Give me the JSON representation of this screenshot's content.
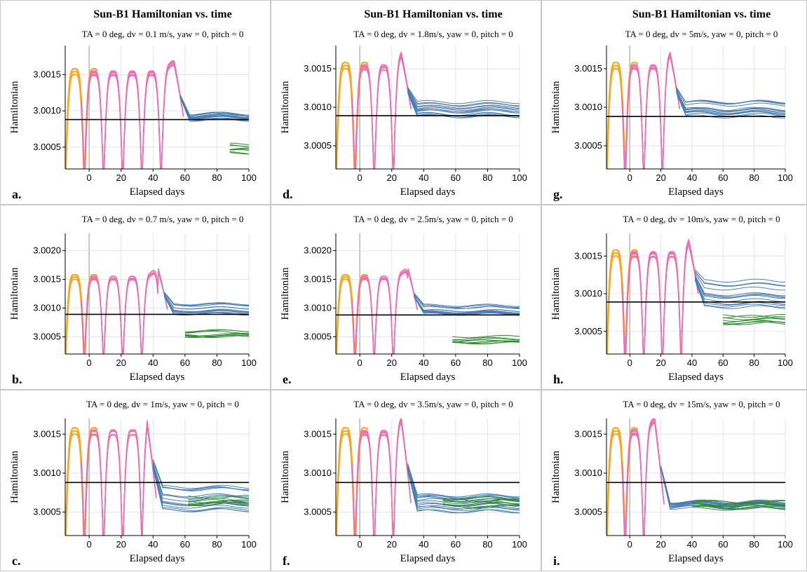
{
  "figure": {
    "panels": [
      {
        "id": "a",
        "letter": "a.",
        "title": "Sun-B1 Hamiltonian vs. time",
        "subtitle": "TA = 0 deg, dv = 0.1 m/s, yaw = 0, pitch = 0"
      },
      {
        "id": "d",
        "letter": "d.",
        "title": "Sun-B1 Hamiltonian vs. time",
        "subtitle": "TA = 0 deg, dv = 1.8m/s, yaw = 0, pitch = 0"
      },
      {
        "id": "g",
        "letter": "g.",
        "title": "Sun-B1 Hamiltonian vs. time",
        "subtitle": "TA = 0 deg, dv = 5m/s, yaw = 0, pitch = 0"
      },
      {
        "id": "b",
        "letter": "b.",
        "title": "",
        "subtitle": "TA = 0 deg, dv = 0.7 m/s, yaw = 0, pitch = 0"
      },
      {
        "id": "e",
        "letter": "e.",
        "title": "",
        "subtitle": "TA = 0 deg, dv = 2.5m/s, yaw = 0, pitch = 0"
      },
      {
        "id": "h",
        "letter": "h.",
        "title": "",
        "subtitle": "TA = 0 deg, dv = 10m/s, yaw = 0, pitch = 0"
      },
      {
        "id": "c",
        "letter": "c.",
        "title": "",
        "subtitle": "TA = 0 deg, dv = 1m/s, yaw = 0, pitch = 0"
      },
      {
        "id": "f",
        "letter": "f.",
        "title": "",
        "subtitle": "TA = 0 deg, dv = 3.5m/s, yaw = 0, pitch = 0"
      },
      {
        "id": "i",
        "letter": "i.",
        "title": "",
        "subtitle": "TA = 0 deg, dv = 15m/s, yaw = 0, pitch = 0"
      }
    ]
  },
  "colors": {
    "pre": "#f5a623",
    "transfer": "#ec6fb2",
    "orbit": "#4a7fb5",
    "late": "#2e8b2e",
    "reference": "#000000",
    "grid": "#e3e3e3",
    "zeroline": "#b0b0b0",
    "axis": "#000000"
  },
  "chart_data": [
    {
      "panel": "a",
      "type": "line",
      "title": "Sun-B1 Hamiltonian vs. time",
      "subtitle": "TA = 0 deg, dv = 0.1 m/s, yaw = 0, pitch = 0",
      "xlabel": "Elapsed days",
      "ylabel": "Hamiltonian",
      "xlim": [
        -15,
        100
      ],
      "ylim": [
        3.0002,
        3.0019
      ],
      "xticks": [
        0,
        20,
        40,
        60,
        80,
        100
      ],
      "yticks": [
        3.0005,
        3.001,
        3.0015
      ],
      "ytick_labels": [
        "3.0005",
        "3.0010",
        "3.0015"
      ],
      "reference_y": 3.00088,
      "transfer_end": 55,
      "orbit_level": 3.00092,
      "green_start": 88,
      "green_level": 3.00048,
      "spread": 5e-05
    },
    {
      "panel": "d",
      "type": "line",
      "title": "Sun-B1 Hamiltonian vs. time",
      "subtitle": "TA = 0 deg, dv = 1.8m/s, yaw = 0, pitch = 0",
      "xlabel": "Elapsed days",
      "ylabel": "Hamiltonian",
      "xlim": [
        -15,
        100
      ],
      "ylim": [
        3.0002,
        3.0018
      ],
      "xticks": [
        0,
        20,
        40,
        60,
        80,
        100
      ],
      "yticks": [
        3.0005,
        3.001,
        3.0015
      ],
      "ytick_labels": [
        "3.0005",
        "3.0010",
        "3.0015"
      ],
      "reference_y": 3.00089,
      "transfer_end": 28,
      "orbit_level": 3.00098,
      "green_start": null,
      "green_level": null,
      "spread": 0.0001
    },
    {
      "panel": "g",
      "type": "line",
      "title": "Sun-B1 Hamiltonian vs. time",
      "subtitle": "TA = 0 deg, dv = 5m/s, yaw = 0, pitch = 0",
      "xlabel": "Elapsed days",
      "ylabel": "Hamiltonian",
      "xlim": [
        -15,
        100
      ],
      "ylim": [
        3.0002,
        3.0018
      ],
      "xticks": [
        0,
        20,
        40,
        60,
        80,
        100
      ],
      "yticks": [
        3.0005,
        3.001,
        3.0015
      ],
      "ytick_labels": [
        "3.0005",
        "3.0010",
        "3.0015"
      ],
      "reference_y": 3.00088,
      "transfer_end": 28,
      "orbit_level": 3.00098,
      "green_start": null,
      "green_level": null,
      "spread": 0.0001
    },
    {
      "panel": "b",
      "type": "line",
      "title": "",
      "subtitle": "TA = 0 deg, dv = 0.7 m/s, yaw = 0, pitch = 0",
      "xlabel": "Elapsed days",
      "ylabel": "Hamiltonian",
      "xlim": [
        -15,
        100
      ],
      "ylim": [
        3.0002,
        3.0023
      ],
      "xticks": [
        0,
        20,
        40,
        60,
        80,
        100
      ],
      "yticks": [
        3.0005,
        3.001,
        3.0015,
        3.002
      ],
      "ytick_labels": [
        "3.0005",
        "3.0010",
        "3.0015",
        "3.0020"
      ],
      "reference_y": 3.00089,
      "transfer_end": 45,
      "orbit_level": 3.00098,
      "green_start": 60,
      "green_level": 3.00055,
      "spread": 0.0001
    },
    {
      "panel": "e",
      "type": "line",
      "title": "",
      "subtitle": "TA = 0 deg, dv = 2.5m/s, yaw = 0, pitch = 0",
      "xlabel": "Elapsed days",
      "ylabel": "Hamiltonian",
      "xlim": [
        -15,
        100
      ],
      "ylim": [
        3.0002,
        3.0023
      ],
      "xticks": [
        0,
        20,
        40,
        60,
        80,
        100
      ],
      "yticks": [
        3.0005,
        3.001,
        3.0015,
        3.002
      ],
      "ytick_labels": [
        "3.0005",
        "3.0010",
        "3.0015",
        "3.0020"
      ],
      "reference_y": 3.00088,
      "transfer_end": 32,
      "orbit_level": 3.00097,
      "green_start": 58,
      "green_level": 3.00045,
      "spread": 8e-05
    },
    {
      "panel": "h",
      "type": "line",
      "title": "",
      "subtitle": "TA = 0 deg, dv = 10m/s, yaw = 0, pitch = 0",
      "xlabel": "Elapsed days",
      "ylabel": "Hamiltonian",
      "xlim": [
        -15,
        100
      ],
      "ylim": [
        3.0002,
        3.0018
      ],
      "xticks": [
        0,
        20,
        40,
        60,
        80,
        100
      ],
      "yticks": [
        3.0005,
        3.001,
        3.0015
      ],
      "ytick_labels": [
        "3.0005",
        "3.0010",
        "3.0015"
      ],
      "reference_y": 3.00089,
      "transfer_end": 40,
      "orbit_level": 3.001,
      "green_start": 60,
      "green_level": 3.00065,
      "spread": 0.00018
    },
    {
      "panel": "c",
      "type": "line",
      "title": "",
      "subtitle": "TA = 0 deg, dv = 1m/s, yaw = 0, pitch = 0",
      "xlabel": "Elapsed days",
      "ylabel": "Hamiltonian",
      "xlim": [
        -15,
        100
      ],
      "ylim": [
        3.0002,
        3.0017
      ],
      "xticks": [
        0,
        20,
        40,
        60,
        80,
        100
      ],
      "yticks": [
        3.0005,
        3.001,
        3.0015
      ],
      "ytick_labels": [
        "3.0005",
        "3.0010",
        "3.0015"
      ],
      "reference_y": 3.00088,
      "transfer_end": 38,
      "orbit_level": 3.00068,
      "green_start": 62,
      "green_level": 3.00065,
      "spread": 0.00016
    },
    {
      "panel": "f",
      "type": "line",
      "title": "",
      "subtitle": "TA = 0 deg, dv = 3.5m/s, yaw = 0, pitch = 0",
      "xlabel": "Elapsed days",
      "ylabel": "Hamiltonian",
      "xlim": [
        -15,
        100
      ],
      "ylim": [
        3.0002,
        3.0017
      ],
      "xticks": [
        0,
        20,
        40,
        60,
        80,
        100
      ],
      "yticks": [
        3.0005,
        3.001,
        3.0015
      ],
      "ytick_labels": [
        "3.0005",
        "3.0010",
        "3.0015"
      ],
      "reference_y": 3.00088,
      "transfer_end": 28,
      "orbit_level": 3.00062,
      "green_start": 52,
      "green_level": 3.00062,
      "spread": 0.00012
    },
    {
      "panel": "i",
      "type": "line",
      "title": "",
      "subtitle": "TA = 0 deg, dv = 15m/s, yaw = 0, pitch = 0",
      "xlabel": "Elapsed days",
      "ylabel": "Hamiltonian",
      "xlim": [
        -15,
        100
      ],
      "ylim": [
        3.0002,
        3.0017
      ],
      "xticks": [
        0,
        20,
        40,
        60,
        80,
        100
      ],
      "yticks": [
        3.0005,
        3.001,
        3.0015
      ],
      "ytick_labels": [
        "3.0005",
        "3.0010",
        "3.0015"
      ],
      "reference_y": 3.00088,
      "transfer_end": 18,
      "orbit_level": 3.0006,
      "green_start": 40,
      "green_level": 3.0006,
      "spread": 5e-05
    }
  ]
}
